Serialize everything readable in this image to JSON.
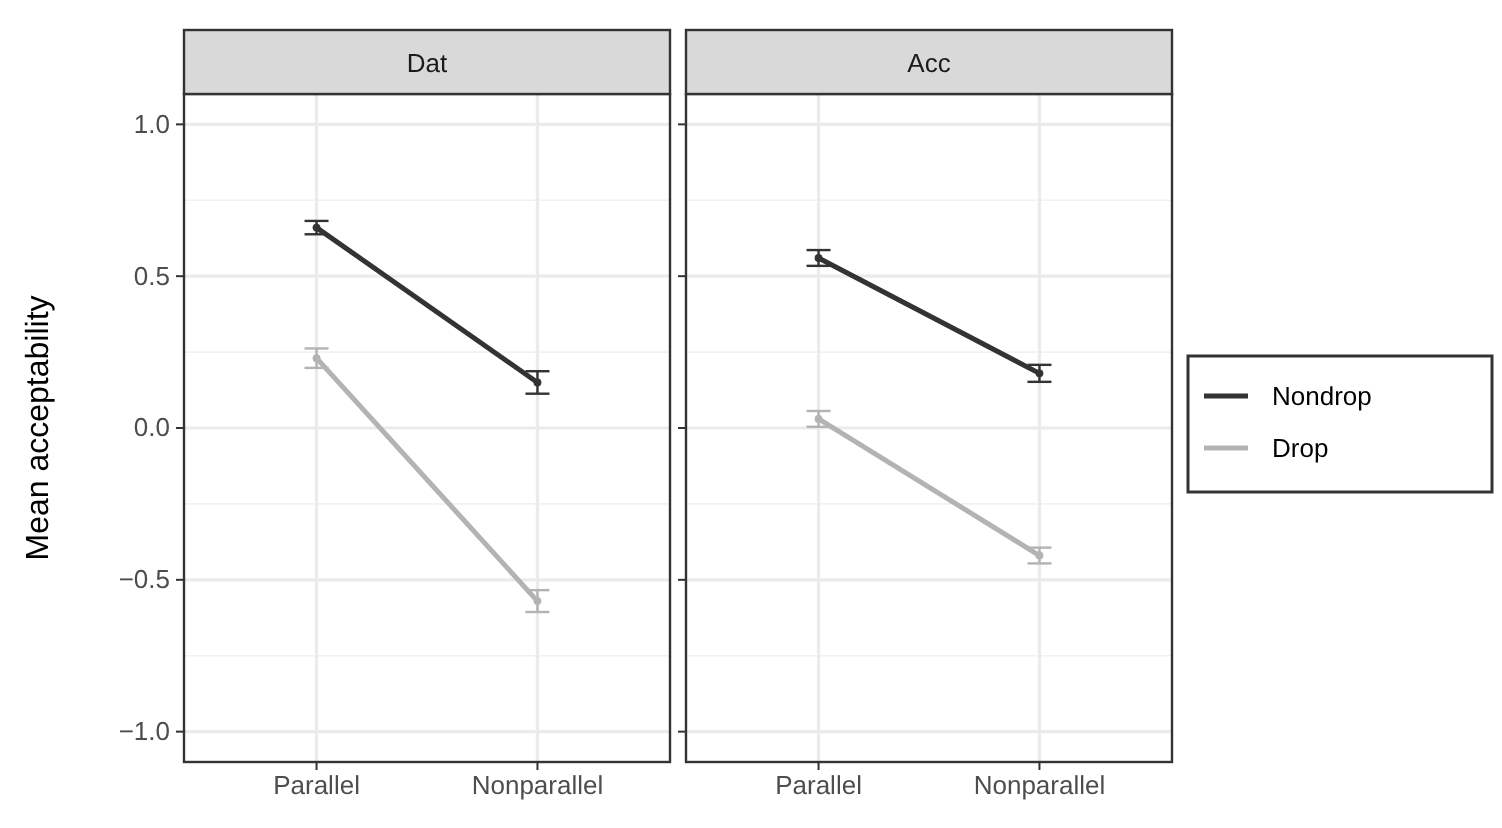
{
  "chart_data": [
    {
      "type": "line",
      "title": "Dat",
      "ylabel": "Mean acceptability",
      "categories": [
        "Parallel",
        "Nonparallel"
      ],
      "ylim": [
        -1.1,
        1.1
      ],
      "yticks": [
        {
          "value": -1,
          "label": "−1.0"
        },
        {
          "value": -0.5,
          "label": "−0.5"
        },
        {
          "value": 0,
          "label": "0.0"
        },
        {
          "value": 0.5,
          "label": "0.5"
        },
        {
          "value": 1,
          "label": "1.0"
        }
      ],
      "grid": true,
      "marker": "circle",
      "series": [
        {
          "color": "#333333",
          "values": [
            0.66,
            0.15
          ],
          "errors": [
            0.022,
            0.037
          ]
        },
        {
          "color": "#b3b3b3",
          "values": [
            0.23,
            -0.57
          ],
          "errors": [
            0.032,
            0.036
          ]
        }
      ]
    },
    {
      "type": "line",
      "title": "Acc",
      "categories": [
        "Parallel",
        "Nonparallel"
      ],
      "ylim": [
        -1.1,
        1.1
      ],
      "yticks": [
        -1,
        -0.5,
        0,
        0.5,
        1
      ],
      "tick_labels": "x",
      "grid": true,
      "marker": "circle",
      "legend": "right",
      "series": [
        {
          "name": "Nondrop",
          "color": "#333333",
          "values": [
            0.56,
            0.18
          ],
          "errors": [
            0.026,
            0.028
          ]
        },
        {
          "name": "Drop",
          "color": "#b3b3b3",
          "values": [
            0.03,
            -0.42
          ],
          "errors": [
            0.026,
            0.026
          ]
        }
      ]
    }
  ]
}
